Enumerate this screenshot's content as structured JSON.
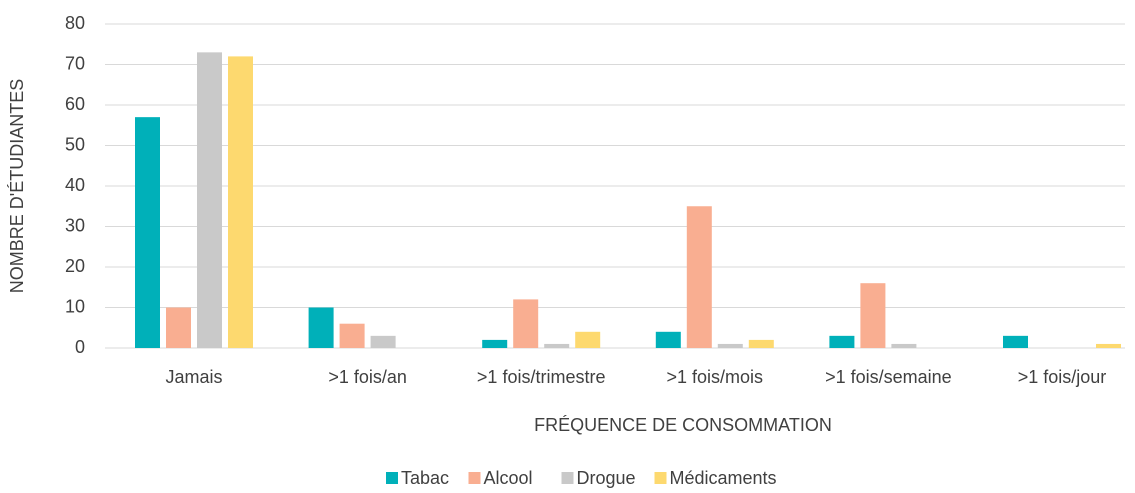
{
  "chart_data": {
    "type": "bar",
    "ylabel": "NOMBRE D'ÉTUDIANTES",
    "xlabel": "FRÉQUENCE DE CONSOMMATION",
    "categories": [
      "Jamais",
      ">1 fois/an",
      ">1 fois/trimestre",
      ">1 fois/mois",
      ">1 fois/semaine",
      ">1 fois/jour"
    ],
    "series": [
      {
        "name": "Tabac",
        "color": "#00b0b9",
        "values": [
          57,
          10,
          2,
          4,
          3,
          3
        ]
      },
      {
        "name": "Alcool",
        "color": "#f9ae91",
        "values": [
          10,
          6,
          12,
          35,
          16,
          0
        ]
      },
      {
        "name": "Drogue",
        "color": "#c9c9c9",
        "values": [
          73,
          3,
          1,
          1,
          1,
          0
        ]
      },
      {
        "name": "Médicaments",
        "color": "#fdd96f",
        "values": [
          72,
          0,
          4,
          2,
          0,
          1
        ]
      }
    ],
    "ylim": [
      0,
      80
    ],
    "yticks": [
      0,
      10,
      20,
      30,
      40,
      50,
      60,
      70,
      80
    ],
    "grid": true,
    "legend": "bottom"
  }
}
